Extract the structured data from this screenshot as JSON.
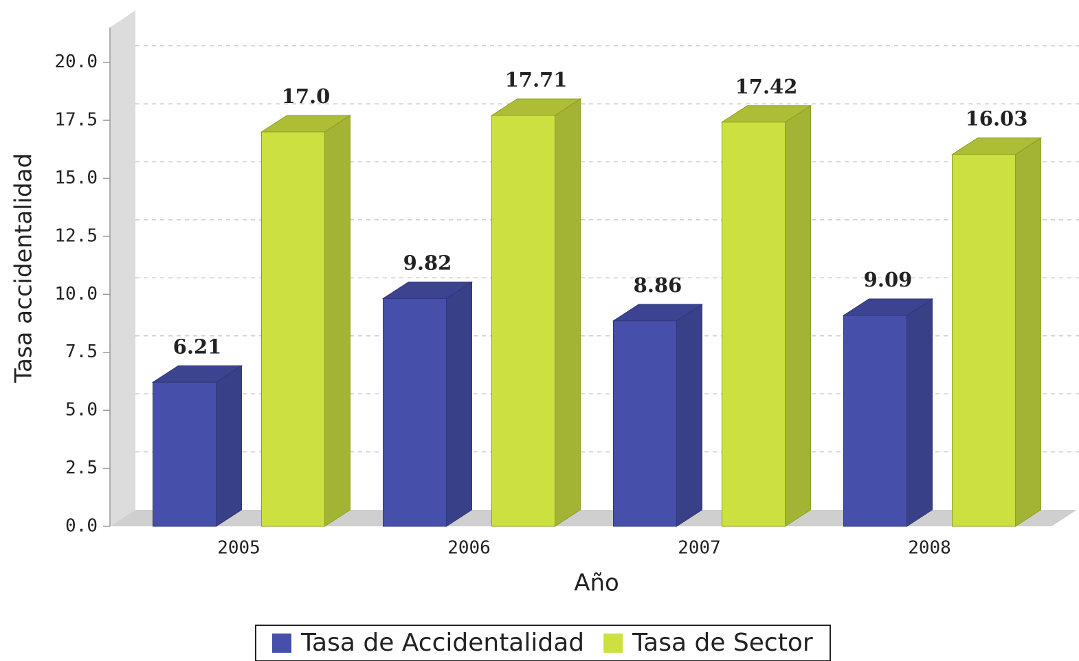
{
  "chart_data": {
    "type": "bar3d",
    "xlabel": "Año",
    "ylabel": "Tasa accidentalidad",
    "categories": [
      "2005",
      "2006",
      "2007",
      "2008"
    ],
    "series": [
      {
        "name": "Tasa de Accidentalidad",
        "color": "#4650aa",
        "values": [
          6.21,
          9.82,
          8.86,
          9.09
        ]
      },
      {
        "name": "Tasa de Sector",
        "color": "#cce040",
        "values": [
          17.0,
          17.71,
          17.42,
          16.03
        ],
        "value_labels": [
          "17.0",
          "17.71",
          "17.42",
          "16.03"
        ]
      }
    ],
    "ylim": [
      0,
      21.5
    ],
    "yticks": [
      {
        "value": 0,
        "label": "0.0"
      },
      2.5,
      {
        "value": 5,
        "label": "5.0"
      },
      7.5,
      {
        "value": 10,
        "label": "10.0"
      },
      12.5,
      {
        "value": 15,
        "label": "15.0"
      },
      17.5,
      {
        "value": 20,
        "label": "20.0"
      }
    ],
    "grid": true
  }
}
